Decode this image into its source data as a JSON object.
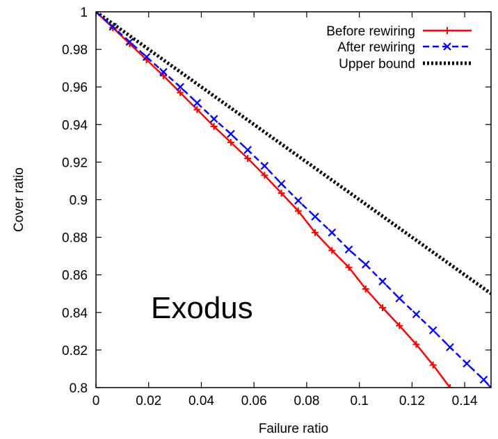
{
  "chart_data": {
    "type": "line",
    "title": "",
    "annotation": "Exodus",
    "xlabel": "Failure ratio",
    "ylabel": "Cover ratio",
    "xlim": [
      0,
      0.15
    ],
    "ylim": [
      0.8,
      1.0
    ],
    "xticks": [
      0,
      0.02,
      0.04,
      0.06,
      0.08,
      0.1,
      0.12,
      0.14
    ],
    "xtick_labels": [
      "0",
      "0.02",
      "0.04",
      "0.06",
      "0.08",
      "0.1",
      "0.12",
      "0.14"
    ],
    "yticks": [
      0.8,
      0.82,
      0.84,
      0.86,
      0.88,
      0.9,
      0.92,
      0.94,
      0.96,
      0.98,
      1.0
    ],
    "ytick_labels": [
      "0.8",
      "0.82",
      "0.84",
      "0.86",
      "0.88",
      "0.9",
      "0.92",
      "0.94",
      "0.96",
      "0.98",
      "1"
    ],
    "grid": false,
    "legend_position": "top-right",
    "series": [
      {
        "name": "Before rewiring",
        "color": "#ff0000",
        "line_style": "solid",
        "marker": "plus",
        "x": [
          0,
          0.0064,
          0.0128,
          0.0192,
          0.0256,
          0.032,
          0.0384,
          0.0448,
          0.0512,
          0.0576,
          0.064,
          0.0704,
          0.0768,
          0.0832,
          0.0896,
          0.096,
          0.1024,
          0.1088,
          0.1152,
          0.1216,
          0.128,
          0.1344,
          0.14
        ],
        "y": [
          1.0,
          0.9915,
          0.983,
          0.9745,
          0.966,
          0.957,
          0.948,
          0.939,
          0.9305,
          0.922,
          0.913,
          0.9035,
          0.894,
          0.8825,
          0.873,
          0.864,
          0.8525,
          0.8425,
          0.833,
          0.823,
          0.812,
          0.8,
          0.795
        ]
      },
      {
        "name": "After rewiring",
        "color": "#0000ff",
        "line_style": "dashed",
        "marker": "x",
        "x": [
          0,
          0.0064,
          0.0128,
          0.0192,
          0.0256,
          0.032,
          0.0384,
          0.0448,
          0.0512,
          0.0576,
          0.064,
          0.0704,
          0.0768,
          0.0832,
          0.0896,
          0.096,
          0.1024,
          0.1088,
          0.1152,
          0.1216,
          0.128,
          0.1344,
          0.1408,
          0.1472,
          0.15
        ],
        "y": [
          1.0,
          0.992,
          0.984,
          0.976,
          0.968,
          0.96,
          0.9515,
          0.943,
          0.935,
          0.9265,
          0.918,
          0.9085,
          0.8995,
          0.891,
          0.8825,
          0.8735,
          0.8655,
          0.8565,
          0.8475,
          0.839,
          0.8305,
          0.8215,
          0.8128,
          0.8042,
          0.8
        ]
      },
      {
        "name": "Upper bound",
        "color": "#000000",
        "line_style": "dotted",
        "marker": "none",
        "x": [
          0,
          0.15
        ],
        "y": [
          1.0,
          0.85
        ]
      }
    ]
  }
}
